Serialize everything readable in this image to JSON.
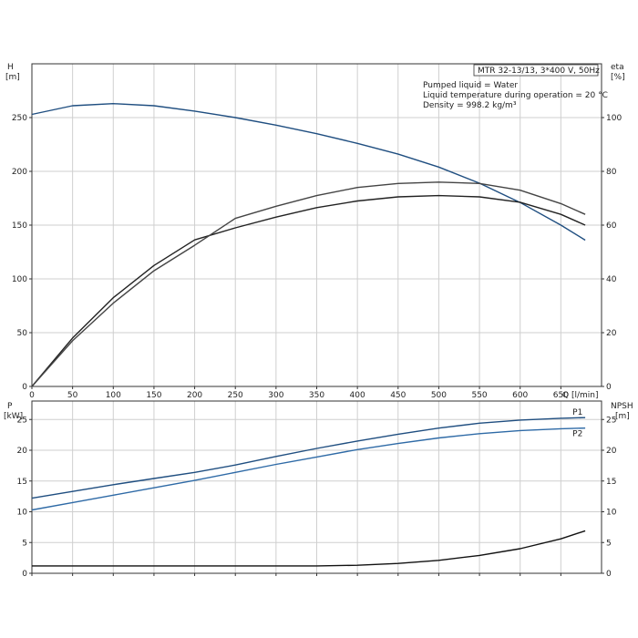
{
  "chart_data": [
    {
      "type": "line",
      "x_label": "Q [l/min]",
      "y_left_label": [
        "H",
        "[m]"
      ],
      "y_right_label": [
        "eta",
        "[%]"
      ],
      "xlim": [
        0,
        700
      ],
      "ylim_left": [
        0,
        300
      ],
      "ylim_right": [
        0,
        120
      ],
      "x_ticks": [
        0,
        50,
        100,
        150,
        200,
        250,
        300,
        350,
        400,
        450,
        500,
        550,
        600,
        650
      ],
      "y_left_ticks": [
        0,
        50,
        100,
        150,
        200,
        250
      ],
      "y_right_ticks": [
        0,
        20,
        40,
        60,
        80,
        100
      ],
      "info": {
        "model": "MTR 32-13/13, 3*400 V, 50Hz",
        "lines": [
          "Pumped liquid = Water",
          "Liquid temperature during operation = 20 °C",
          "Density = 998.2 kg/m³"
        ]
      },
      "series": [
        {
          "axis": "left",
          "color": "#1f4e80",
          "x": [
            0,
            50,
            100,
            150,
            200,
            250,
            300,
            350,
            400,
            450,
            500,
            550,
            600,
            650,
            680
          ],
          "values": [
            253,
            261,
            263,
            261,
            256,
            250,
            243,
            235,
            226,
            216,
            204,
            189,
            171,
            150,
            136
          ]
        },
        {
          "axis": "right",
          "color": "#222222",
          "x": [
            0,
            50,
            100,
            150,
            200,
            250,
            300,
            350,
            400,
            450,
            500,
            550,
            600,
            650,
            680
          ],
          "values": [
            0,
            18,
            33,
            45,
            54.5,
            59,
            63,
            66.5,
            69,
            70.5,
            71,
            70.5,
            68.5,
            64,
            60
          ]
        },
        {
          "axis": "right",
          "color": "#444444",
          "x": [
            0,
            50,
            100,
            150,
            200,
            250,
            300,
            350,
            400,
            450,
            500,
            550,
            600,
            650,
            680
          ],
          "values": [
            0,
            17,
            31,
            43,
            52.5,
            62.5,
            67,
            71,
            74,
            75.5,
            76,
            75.5,
            73,
            68,
            64
          ]
        }
      ]
    },
    {
      "type": "line",
      "x_label": "",
      "y_left_label": [
        "P",
        "[kW]"
      ],
      "y_right_label": [
        "NPSH",
        "[m]"
      ],
      "xlim": [
        0,
        700
      ],
      "ylim_left": [
        0,
        28
      ],
      "ylim_right": [
        0,
        28
      ],
      "y_left_ticks": [
        0,
        5,
        10,
        15,
        20,
        25
      ],
      "y_right_ticks": [
        0,
        5,
        10,
        15,
        20,
        25
      ],
      "series": [
        {
          "name": "P1",
          "axis": "left",
          "color": "#1f4e80",
          "x": [
            0,
            50,
            100,
            150,
            200,
            250,
            300,
            350,
            400,
            450,
            500,
            550,
            600,
            650,
            680
          ],
          "values": [
            12.2,
            13.3,
            14.4,
            15.4,
            16.4,
            17.6,
            19.0,
            20.3,
            21.5,
            22.6,
            23.6,
            24.4,
            24.9,
            25.2,
            25.3
          ]
        },
        {
          "name": "P2",
          "axis": "left",
          "color": "#2e6aa6",
          "x": [
            0,
            50,
            100,
            150,
            200,
            250,
            300,
            350,
            400,
            450,
            500,
            550,
            600,
            650,
            680
          ],
          "values": [
            10.3,
            11.5,
            12.7,
            13.9,
            15.1,
            16.4,
            17.7,
            18.9,
            20.1,
            21.1,
            22.0,
            22.7,
            23.2,
            23.5,
            23.6
          ]
        },
        {
          "axis": "right",
          "color": "#111111",
          "x": [
            0,
            50,
            100,
            150,
            200,
            250,
            300,
            350,
            400,
            450,
            500,
            550,
            600,
            650,
            680
          ],
          "values": [
            1.2,
            1.2,
            1.2,
            1.2,
            1.2,
            1.2,
            1.2,
            1.2,
            1.3,
            1.6,
            2.1,
            2.9,
            4.0,
            5.6,
            6.9
          ]
        }
      ]
    }
  ]
}
